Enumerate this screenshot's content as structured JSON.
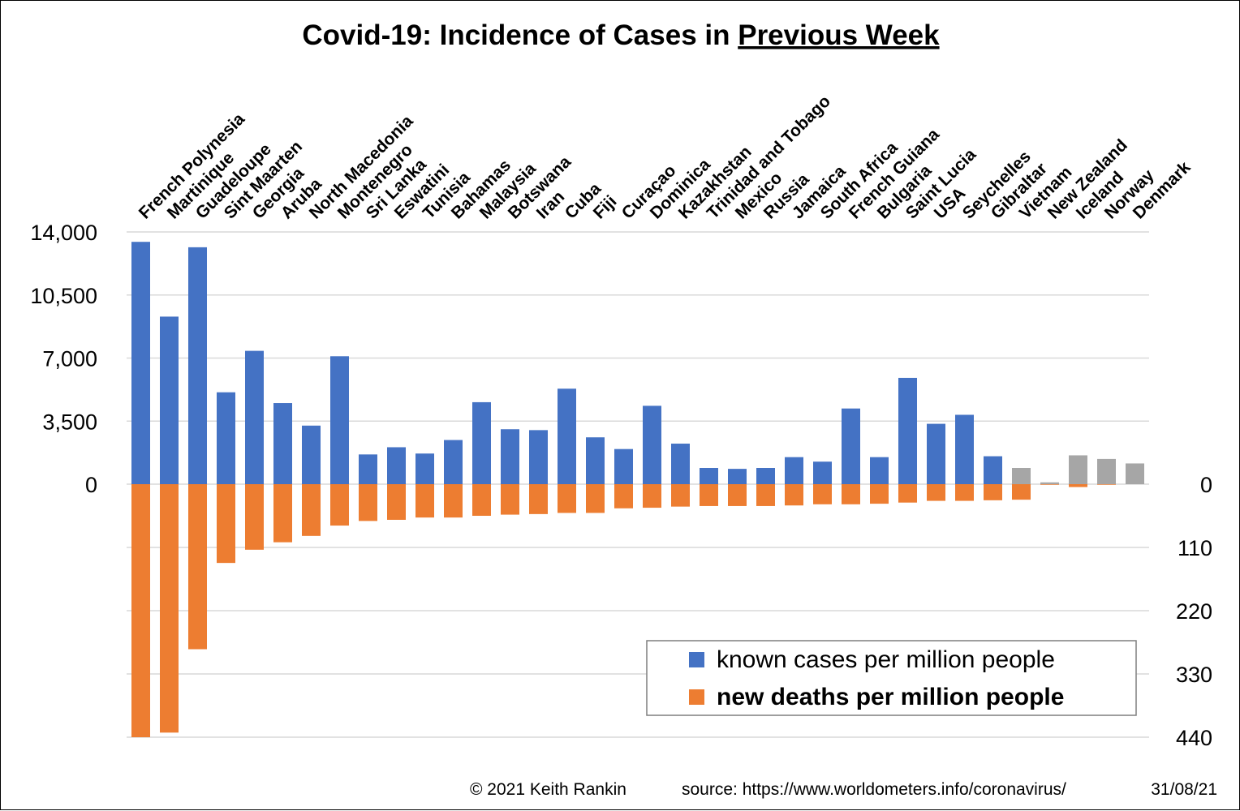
{
  "chart_data": {
    "type": "bar",
    "title_main": "Covid-19: Incidence of Cases in ",
    "title_underlined": "Previous Week",
    "categories": [
      "French Polynesia",
      "Martinique",
      "Guadeloupe",
      "Sint Maarten",
      "Georgia",
      "Aruba",
      "North Macedonia",
      "Montenegro",
      "Sri Lanka",
      "Eswatini",
      "Tunisia",
      "Bahamas",
      "Malaysia",
      "Botswana",
      "Iran",
      "Cuba",
      "Fiji",
      "Curaçao",
      "Dominica",
      "Kazakhstan",
      "Trinidad and Tobago",
      "Mexico",
      "Russia",
      "Jamaica",
      "South Africa",
      "French Guiana",
      "Bulgaria",
      "Saint Lucia",
      "USA",
      "Seychelles",
      "Gibraltar",
      "Vietnam",
      "New Zealand",
      "Iceland",
      "Norway",
      "Denmark"
    ],
    "series": [
      {
        "name": "known cases per million people",
        "color": "#4472C4",
        "muted_color": "#A6A6A6",
        "values": [
          13450,
          9300,
          13150,
          5100,
          7400,
          4500,
          3250,
          7100,
          1650,
          2050,
          1700,
          2450,
          4550,
          3050,
          3000,
          5300,
          2600,
          1950,
          4350,
          2250,
          900,
          850,
          900,
          1500,
          1250,
          4200,
          1500,
          5900,
          3350,
          3850,
          1550,
          900,
          100,
          1600,
          1400,
          1150
        ]
      },
      {
        "name": "new deaths per million people",
        "color": "#ED7D31",
        "values": [
          440,
          432,
          287,
          137,
          114,
          101,
          90,
          72,
          64,
          62,
          58,
          58,
          55,
          53,
          52,
          50,
          50,
          42,
          41,
          39,
          38,
          38,
          38,
          37,
          35,
          35,
          34,
          32,
          29,
          29,
          28,
          27,
          1,
          5,
          1,
          0
        ]
      }
    ],
    "muted_categories": [
      "Vietnam",
      "New Zealand",
      "Iceland",
      "Norway",
      "Denmark"
    ],
    "left_axis": {
      "ticks": [
        "14,000",
        "10,500",
        "7,000",
        "3,500",
        "0"
      ],
      "values": [
        14000,
        10500,
        7000,
        3500,
        0
      ]
    },
    "right_axis": {
      "ticks": [
        "0",
        "110",
        "220",
        "330",
        "440"
      ],
      "values": [
        0,
        110,
        220,
        330,
        440
      ]
    },
    "grid": true,
    "legend_position": "bottom-right"
  },
  "footer": {
    "copyright": "© 2021   Keith Rankin",
    "source": "source: https://www.worldometers.info/coronavirus/",
    "date": "31/08/21"
  }
}
